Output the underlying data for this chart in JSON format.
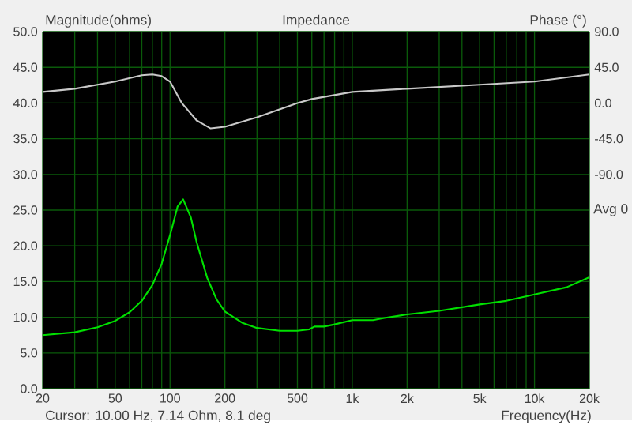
{
  "chart_data": {
    "type": "line",
    "title": "Impedance",
    "ylabel": "Magnitude(ohms)",
    "y2label": "Phase (°)",
    "xlabel": "Frequency(Hz)",
    "annotations": [
      "Cursor: 10.00 Hz, 7.14 Ohm, 8.1 deg",
      "Avg 0"
    ],
    "log": "x",
    "grid": true,
    "xlim": [
      20,
      20000
    ],
    "xticks": [
      20,
      {
        "value": 30,
        "label": null
      },
      {
        "value": 40,
        "label": null
      },
      50,
      {
        "value": 60,
        "label": null
      },
      {
        "value": 70,
        "label": null
      },
      {
        "value": 80,
        "label": null
      },
      {
        "value": 90,
        "label": null
      },
      100,
      200,
      {
        "value": 300,
        "label": null
      },
      {
        "value": 400,
        "label": null
      },
      500,
      {
        "value": 600,
        "label": null
      },
      {
        "value": 700,
        "label": null
      },
      {
        "value": 800,
        "label": null
      },
      {
        "value": 900,
        "label": null
      },
      {
        "value": 1000,
        "label": "1k"
      },
      {
        "value": 2000,
        "label": "2k"
      },
      {
        "value": 3000,
        "label": null
      },
      {
        "value": 4000,
        "label": null
      },
      {
        "value": 5000,
        "label": "5k"
      },
      {
        "value": 6000,
        "label": null
      },
      {
        "value": 7000,
        "label": null
      },
      {
        "value": 8000,
        "label": null
      },
      {
        "value": 9000,
        "label": null
      },
      {
        "value": 10000,
        "label": "10k"
      },
      {
        "value": 20000,
        "label": "20k"
      }
    ],
    "ylim": [
      0,
      50
    ],
    "yticks": [
      {
        "value": 0,
        "label": "0.0"
      },
      {
        "value": 5,
        "label": "5.0"
      },
      {
        "value": 10,
        "label": "10.0"
      },
      {
        "value": 15,
        "label": "15.0"
      },
      {
        "value": 20,
        "label": "20.0"
      },
      {
        "value": 25,
        "label": "25.0"
      },
      {
        "value": 30,
        "label": "30.0"
      },
      {
        "value": 35,
        "label": "35.0"
      },
      {
        "value": 40,
        "label": "40.0"
      },
      {
        "value": 45,
        "label": "45.0"
      },
      {
        "value": 50,
        "label": "50.0"
      }
    ],
    "y2lim": [
      -360,
      90
    ],
    "y2ticks": [
      {
        "value": -90,
        "label": "-90.0"
      },
      {
        "value": -45,
        "label": "-45.0"
      },
      {
        "value": 0,
        "label": "0.0"
      },
      {
        "value": 45,
        "label": "45.0"
      },
      {
        "value": 90,
        "label": "90.0"
      }
    ],
    "series": [
      {
        "color": "#00e000",
        "x": [
          20,
          30,
          40,
          50,
          60,
          70,
          80,
          90,
          100,
          110,
          118,
          130,
          140,
          160,
          180,
          200,
          250,
          300,
          400,
          500,
          580,
          620,
          700,
          800,
          1000,
          1300,
          1500,
          2000,
          3000,
          5000,
          7000,
          10000,
          15000,
          20000
        ],
        "values": [
          7.5,
          7.9,
          8.6,
          9.5,
          10.7,
          12.3,
          14.5,
          17.5,
          21.5,
          25.5,
          26.5,
          24,
          20.5,
          15.5,
          12.5,
          10.8,
          9.2,
          8.5,
          8.1,
          8.1,
          8.3,
          8.7,
          8.7,
          9,
          9.6,
          9.6,
          9.9,
          10.4,
          10.9,
          11.8,
          12.3,
          13.2,
          14.2,
          15.6
        ]
      },
      {
        "color": "#c8c8c8",
        "axis": "y2",
        "x": [
          20,
          30,
          50,
          70,
          80,
          90,
          100,
          116,
          140,
          167,
          200,
          300,
          500,
          600,
          1000,
          2000,
          5000,
          10000,
          20000
        ],
        "values": [
          14,
          18,
          27,
          35,
          36,
          34,
          27,
          0,
          -22,
          -32,
          -30,
          -18,
          0,
          5,
          14,
          18,
          23,
          27,
          36
        ]
      }
    ]
  }
}
